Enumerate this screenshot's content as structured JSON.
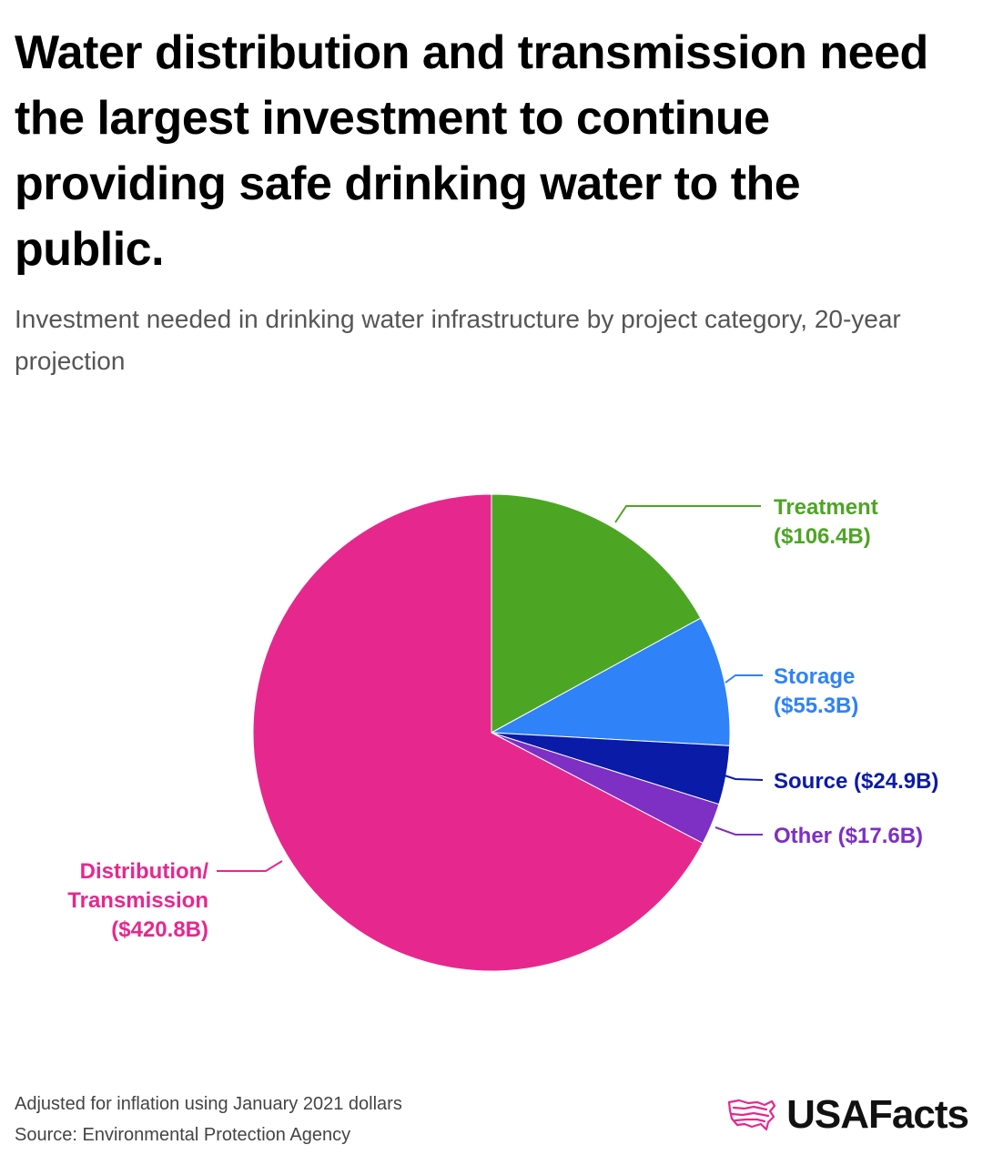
{
  "header": {
    "title": "Water distribution and transmission need the largest investment to continue providing safe drinking water to the public.",
    "subtitle": "Investment needed in drinking water infrastructure by project category, 20-year projection"
  },
  "chart_data": {
    "type": "pie",
    "units": "$B",
    "slices": [
      {
        "name": "Treatment",
        "value": 106.4,
        "value_label": "($106.4B)",
        "color": "#4ca624"
      },
      {
        "name": "Storage",
        "value": 55.3,
        "value_label": "($55.3B)",
        "color": "#2f82f7"
      },
      {
        "name": "Source",
        "value": 24.9,
        "value_label": "($24.9B)",
        "color": "#0a1ba8"
      },
      {
        "name": "Other",
        "value": 17.6,
        "value_label": "($17.6B)",
        "color": "#7e2fc4"
      },
      {
        "name": "Distribution/ Transmission",
        "value": 420.8,
        "value_label": "($420.8B)",
        "color": "#e6288e"
      }
    ],
    "label_lines": {
      "Treatment": [
        "Treatment",
        "($106.4B)"
      ],
      "Storage": [
        "Storage",
        "($55.3B)"
      ],
      "Source": [
        "Source ($24.9B)"
      ],
      "Other": [
        "Other ($17.6B)"
      ],
      "Distribution/ Transmission": [
        "Distribution/",
        "Transmission",
        "($420.8B)"
      ]
    }
  },
  "footer": {
    "note": "Adjusted for inflation using January 2021 dollars",
    "source": "Source: Environmental Protection Agency"
  },
  "logo": {
    "text": "USAFacts",
    "icon": "usa-map-icon",
    "color": "#e6288e"
  }
}
